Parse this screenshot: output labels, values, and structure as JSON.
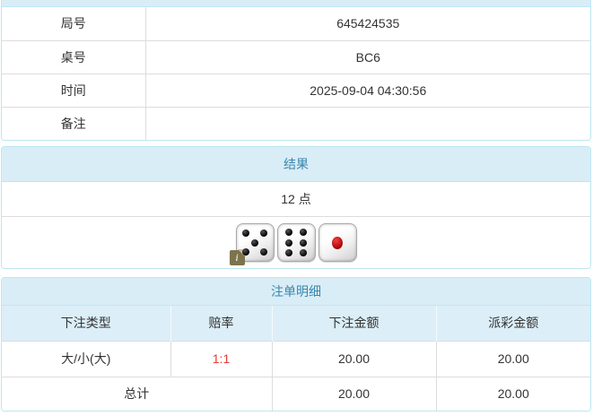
{
  "colors": {
    "panel_border": "#bce8f1",
    "heading_bg": "#d9edf7",
    "heading_text": "#3a87ad",
    "table_border": "#dddddd",
    "odds_red": "#e53b33"
  },
  "info_table": {
    "rows": [
      {
        "label": "局号",
        "value": "645424535"
      },
      {
        "label": "桌号",
        "value": "BC6"
      },
      {
        "label": "时间",
        "value": "2025-09-04 04:30:56"
      },
      {
        "label": "备注",
        "value": ""
      }
    ]
  },
  "result_panel": {
    "title": "结果",
    "points": "12 点",
    "dice": [
      5,
      6,
      1
    ],
    "info_badge_glyph": "i"
  },
  "bets_panel": {
    "title": "注单明细",
    "columns": [
      "下注类型",
      "赔率",
      "下注金额",
      "派彩金额"
    ],
    "rows": [
      {
        "type": "大/小(大)",
        "odds": "1:1",
        "bet": "20.00",
        "payout": "20.00"
      }
    ],
    "total": {
      "label": "总计",
      "bet": "20.00",
      "payout": "20.00"
    }
  }
}
